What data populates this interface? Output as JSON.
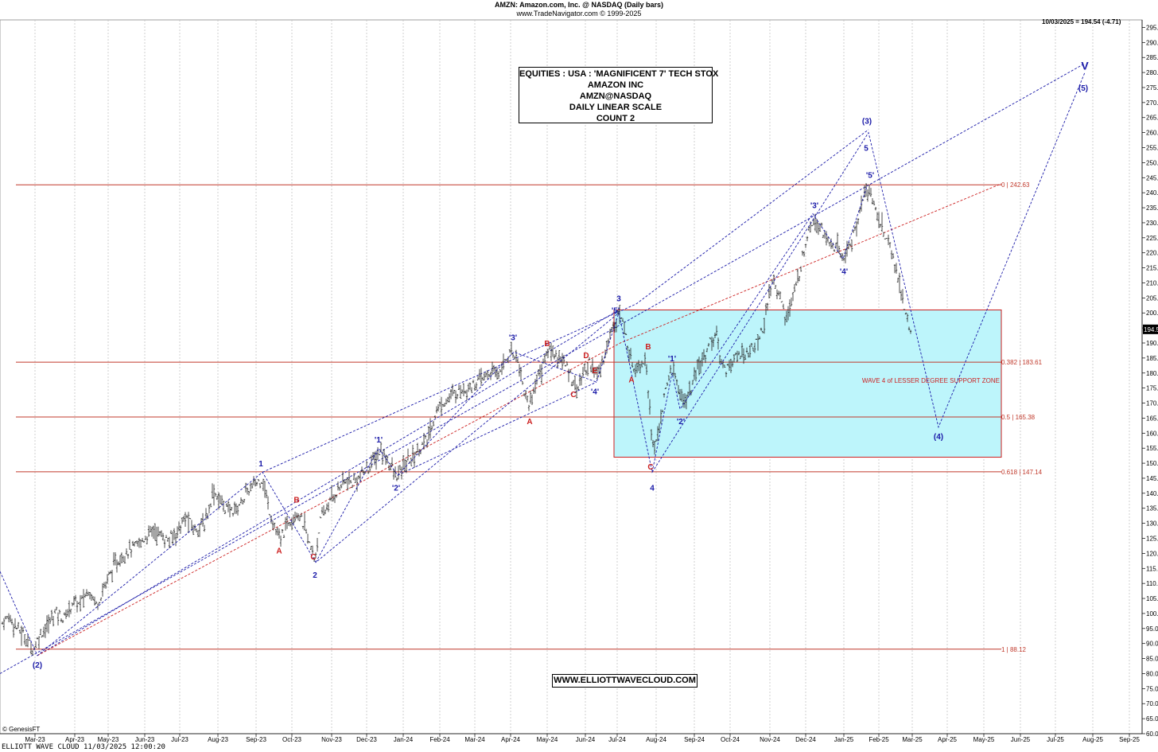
{
  "header": {
    "line1": "AMZN:  Amazon.com, Inc. @ NASDAQ  (Daily bars)",
    "line2": "www.TradeNavigator.com © 1999-2025",
    "last_quote": "10/03/2025 = 194.54 (-4.71)"
  },
  "title_box": {
    "lines": [
      "EQUITIES : USA : 'MAGNIFICENT 7' TECH STOX",
      "AMAZON INC",
      "AMZN@NASDAQ",
      "DAILY LINEAR SCALE",
      "COUNT 2"
    ]
  },
  "website": "WWW.ELLIOTTWAVECLOUD.COM",
  "genesis": "© GenesisFT",
  "footer": "ELLIOTT WAVE CLOUD   11/03/2025 12:00:20",
  "colors": {
    "wave_blue": "#1a1aa8",
    "wave_red": "#cc1f1f",
    "fib_line": "#c0392b",
    "support_zone": "#bdf5fb",
    "price_bar": "#222222",
    "grid": "#bbbbbb",
    "last_price_tag": "#000000"
  },
  "chart_data": {
    "type": "bar",
    "title": "AMZN:  Amazon.com, Inc. @ NASDAQ  (Daily bars)",
    "y_axis_position": "right",
    "ylim": [
      60,
      297.5
    ],
    "yticks": [
      60,
      65,
      70,
      75,
      80,
      85,
      90,
      95,
      100,
      105,
      110,
      115,
      120,
      125,
      130,
      135,
      140,
      145,
      150,
      155,
      160,
      165,
      170,
      175,
      180,
      185,
      190,
      195,
      200,
      205,
      210,
      215,
      220,
      225,
      230,
      235,
      240,
      245,
      250,
      255,
      260,
      265,
      270,
      275,
      280,
      285,
      290,
      295
    ],
    "xlim": [
      0,
      1436
    ],
    "x_months": [
      {
        "label": "Mar-23",
        "x": 44
      },
      {
        "label": "Apr-23",
        "x": 94
      },
      {
        "label": "May-23",
        "x": 136
      },
      {
        "label": "Jun-23",
        "x": 182
      },
      {
        "label": "Jul-23",
        "x": 226
      },
      {
        "label": "Aug-23",
        "x": 274
      },
      {
        "label": "Sep-23",
        "x": 322
      },
      {
        "label": "Oct-23",
        "x": 367
      },
      {
        "label": "Nov-23",
        "x": 417
      },
      {
        "label": "Dec-23",
        "x": 461
      },
      {
        "label": "Jan-24",
        "x": 507
      },
      {
        "label": "Feb-24",
        "x": 553
      },
      {
        "label": "Mar-24",
        "x": 597
      },
      {
        "label": "Apr-24",
        "x": 642
      },
      {
        "label": "May-24",
        "x": 688
      },
      {
        "label": "Jun-24",
        "x": 736
      },
      {
        "label": "Jul-24",
        "x": 776
      },
      {
        "label": "Aug-24",
        "x": 825
      },
      {
        "label": "Sep-24",
        "x": 873
      },
      {
        "label": "Oct-24",
        "x": 918
      },
      {
        "label": "Nov-24",
        "x": 968
      },
      {
        "label": "Dec-24",
        "x": 1013
      },
      {
        "label": "Jan-25",
        "x": 1061
      },
      {
        "label": "Feb-25",
        "x": 1105
      },
      {
        "label": "Mar-25",
        "x": 1147
      },
      {
        "label": "Apr-25",
        "x": 1191
      },
      {
        "label": "May-25",
        "x": 1237
      },
      {
        "label": "Jun-25",
        "x": 1283
      },
      {
        "label": "Jul-25",
        "x": 1327
      },
      {
        "label": "Aug-25",
        "x": 1374
      },
      {
        "label": "Sep-25",
        "x": 1420
      }
    ],
    "price_path": [
      [
        3,
        97
      ],
      [
        12,
        99
      ],
      [
        22,
        95
      ],
      [
        32,
        92
      ],
      [
        42,
        88
      ],
      [
        50,
        93
      ],
      [
        60,
        96
      ],
      [
        70,
        101
      ],
      [
        80,
        98
      ],
      [
        92,
        104
      ],
      [
        100,
        103
      ],
      [
        112,
        108
      ],
      [
        122,
        103
      ],
      [
        134,
        111
      ],
      [
        142,
        115
      ],
      [
        150,
        118
      ],
      [
        160,
        121
      ],
      [
        170,
        122
      ],
      [
        182,
        125
      ],
      [
        192,
        128
      ],
      [
        202,
        126
      ],
      [
        212,
        124
      ],
      [
        224,
        128
      ],
      [
        234,
        132
      ],
      [
        244,
        128
      ],
      [
        258,
        130
      ],
      [
        268,
        141
      ],
      [
        278,
        137
      ],
      [
        288,
        134
      ],
      [
        298,
        135
      ],
      [
        310,
        140
      ],
      [
        320,
        143
      ],
      [
        330,
        145
      ],
      [
        338,
        135
      ],
      [
        346,
        128
      ],
      [
        352,
        124
      ],
      [
        358,
        128
      ],
      [
        366,
        132
      ],
      [
        374,
        134
      ],
      [
        384,
        128
      ],
      [
        390,
        122
      ],
      [
        396,
        118
      ],
      [
        402,
        130
      ],
      [
        412,
        136
      ],
      [
        422,
        140
      ],
      [
        432,
        144
      ],
      [
        442,
        143
      ],
      [
        454,
        146
      ],
      [
        462,
        148
      ],
      [
        470,
        151
      ],
      [
        478,
        154
      ],
      [
        488,
        151
      ],
      [
        498,
        145
      ],
      [
        508,
        149
      ],
      [
        518,
        152
      ],
      [
        528,
        155
      ],
      [
        538,
        158
      ],
      [
        548,
        167
      ],
      [
        556,
        170
      ],
      [
        566,
        172
      ],
      [
        576,
        174
      ],
      [
        586,
        175
      ],
      [
        596,
        176
      ],
      [
        606,
        178
      ],
      [
        616,
        180
      ],
      [
        626,
        180
      ],
      [
        636,
        185
      ],
      [
        646,
        187
      ],
      [
        652,
        184
      ],
      [
        658,
        175
      ],
      [
        666,
        169
      ],
      [
        672,
        176
      ],
      [
        680,
        181
      ],
      [
        690,
        188
      ],
      [
        700,
        186
      ],
      [
        710,
        183
      ],
      [
        718,
        179
      ],
      [
        726,
        175
      ],
      [
        734,
        180
      ],
      [
        742,
        184
      ],
      [
        750,
        179
      ],
      [
        756,
        182
      ],
      [
        764,
        190
      ],
      [
        772,
        197
      ],
      [
        778,
        200
      ],
      [
        784,
        196
      ],
      [
        790,
        188
      ],
      [
        796,
        182
      ],
      [
        804,
        183
      ],
      [
        812,
        185
      ],
      [
        818,
        165
      ],
      [
        822,
        152
      ],
      [
        828,
        162
      ],
      [
        836,
        172
      ],
      [
        844,
        182
      ],
      [
        852,
        176
      ],
      [
        860,
        170
      ],
      [
        868,
        174
      ],
      [
        876,
        180
      ],
      [
        884,
        185
      ],
      [
        892,
        190
      ],
      [
        900,
        193
      ],
      [
        906,
        185
      ],
      [
        912,
        181
      ],
      [
        920,
        184
      ],
      [
        930,
        186
      ],
      [
        940,
        187
      ],
      [
        950,
        189
      ],
      [
        960,
        196
      ],
      [
        966,
        203
      ],
      [
        972,
        212
      ],
      [
        980,
        206
      ],
      [
        988,
        198
      ],
      [
        996,
        204
      ],
      [
        1004,
        212
      ],
      [
        1012,
        222
      ],
      [
        1018,
        230
      ],
      [
        1026,
        231
      ],
      [
        1034,
        228
      ],
      [
        1042,
        223
      ],
      [
        1050,
        222
      ],
      [
        1056,
        220
      ],
      [
        1062,
        218
      ],
      [
        1070,
        224
      ],
      [
        1078,
        230
      ],
      [
        1084,
        238
      ],
      [
        1090,
        241
      ],
      [
        1096,
        239
      ],
      [
        1102,
        233
      ],
      [
        1108,
        229
      ],
      [
        1116,
        224
      ],
      [
        1122,
        219
      ],
      [
        1128,
        213
      ],
      [
        1134,
        206
      ],
      [
        1140,
        198
      ],
      [
        1145,
        192
      ]
    ],
    "last_price": 194.54,
    "last_price_label": "194.54",
    "fib_levels": [
      {
        "label": "0 | 242.63",
        "value": 242.63
      },
      {
        "label": "0.382 | 183.61",
        "value": 183.61
      },
      {
        "label": "0.5 | 165.38",
        "value": 165.38
      },
      {
        "label": "0.618 | 147.14",
        "value": 147.14
      },
      {
        "label": "1 | 88.12",
        "value": 88.12
      }
    ],
    "support_zone": {
      "x0": 772,
      "x1": 1259,
      "y_low": 152,
      "y_high": 201,
      "label": "WAVE 4 of LESSER DEGREE SUPPORT ZONE"
    },
    "wave_paths": [
      {
        "color": "blue",
        "points": [
          [
            0,
            114
          ],
          [
            47,
            86
          ],
          [
            330,
            147
          ],
          [
            397,
            117
          ],
          [
            778,
            200
          ],
          [
            820,
            147
          ],
          [
            1092,
            260
          ],
          [
            1180,
            162
          ],
          [
            1364,
            280
          ]
        ]
      },
      {
        "color": "blue",
        "points": [
          [
            397,
            117
          ],
          [
            476,
            155
          ],
          [
            500,
            146
          ],
          [
            646,
            187
          ],
          [
            750,
            177
          ],
          [
            778,
            200
          ]
        ]
      },
      {
        "color": "blue",
        "points": [
          [
            820,
            147
          ],
          [
            845,
            180
          ],
          [
            855,
            168
          ],
          [
            1022,
            233
          ],
          [
            1060,
            218
          ],
          [
            1090,
            242
          ]
        ]
      }
    ],
    "channels": [
      {
        "color": "blue",
        "points": [
          [
            0,
            80
          ],
          [
            1364,
            283
          ]
        ]
      },
      {
        "color": "blue",
        "points": [
          [
            47,
            86
          ],
          [
            778,
            201
          ]
        ]
      },
      {
        "color": "blue",
        "points": [
          [
            330,
            147
          ],
          [
            800,
            203
          ],
          [
            1092,
            261
          ]
        ]
      },
      {
        "color": "blue",
        "points": [
          [
            500,
            146
          ],
          [
            750,
            177
          ]
        ]
      },
      {
        "color": "red",
        "points": [
          [
            47,
            86
          ],
          [
            780,
            190
          ],
          [
            1259,
            243
          ]
        ]
      }
    ],
    "annotations": [
      {
        "text": "(2)",
        "x": 47,
        "y": 83,
        "color": "blue"
      },
      {
        "text": "1",
        "x": 328,
        "y": 150,
        "color": "blue"
      },
      {
        "text": "A",
        "x": 351,
        "y": 121,
        "color": "red"
      },
      {
        "text": "B",
        "x": 373,
        "y": 138,
        "color": "red"
      },
      {
        "text": "C",
        "x": 394,
        "y": 119,
        "color": "red"
      },
      {
        "text": "2",
        "x": 396,
        "y": 113,
        "color": "blue"
      },
      {
        "text": "'1'",
        "x": 476,
        "y": 158,
        "color": "blue"
      },
      {
        "text": "'2'",
        "x": 498,
        "y": 142,
        "color": "blue"
      },
      {
        "text": "'3'",
        "x": 645,
        "y": 192,
        "color": "blue"
      },
      {
        "text": "A",
        "x": 666,
        "y": 164,
        "color": "red"
      },
      {
        "text": "B",
        "x": 688,
        "y": 190,
        "color": "red"
      },
      {
        "text": "C",
        "x": 721,
        "y": 173,
        "color": "red"
      },
      {
        "text": "D",
        "x": 737,
        "y": 186,
        "color": "red"
      },
      {
        "text": "E",
        "x": 748,
        "y": 181,
        "color": "red"
      },
      {
        "text": "'4'",
        "x": 748,
        "y": 174,
        "color": "blue"
      },
      {
        "text": "'5'",
        "x": 774,
        "y": 201,
        "color": "blue"
      },
      {
        "text": "3",
        "x": 778,
        "y": 205,
        "color": "blue"
      },
      {
        "text": "A",
        "x": 794,
        "y": 178,
        "color": "red"
      },
      {
        "text": "B",
        "x": 815,
        "y": 189,
        "color": "red"
      },
      {
        "text": "'1'",
        "x": 845,
        "y": 185,
        "color": "blue"
      },
      {
        "text": "'2'",
        "x": 856,
        "y": 164,
        "color": "blue"
      },
      {
        "text": "C",
        "x": 818,
        "y": 149,
        "color": "red"
      },
      {
        "text": "4",
        "x": 820,
        "y": 142,
        "color": "blue"
      },
      {
        "text": "'3'",
        "x": 1024,
        "y": 236,
        "color": "blue"
      },
      {
        "text": "'4'",
        "x": 1061,
        "y": 214,
        "color": "blue"
      },
      {
        "text": "'5'",
        "x": 1094,
        "y": 246,
        "color": "blue"
      },
      {
        "text": "5",
        "x": 1089,
        "y": 255,
        "color": "blue"
      },
      {
        "text": "(3)",
        "x": 1090,
        "y": 264,
        "color": "blue"
      },
      {
        "text": "(4)",
        "x": 1180,
        "y": 159,
        "color": "blue"
      },
      {
        "text": "(5)",
        "x": 1362,
        "y": 275,
        "color": "blue"
      },
      {
        "text": "V",
        "x": 1364,
        "y": 282,
        "color": "blue"
      }
    ]
  }
}
